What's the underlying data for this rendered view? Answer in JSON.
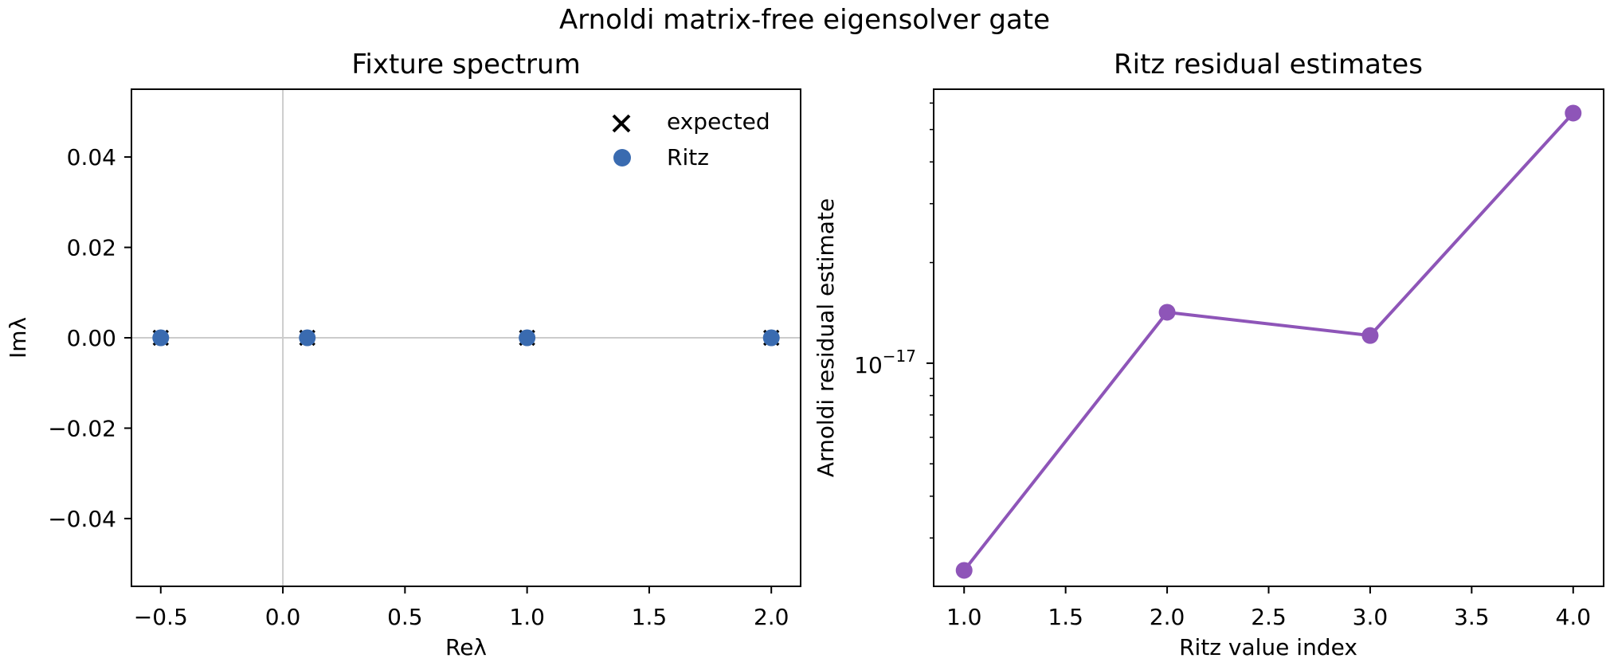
{
  "figure": {
    "title": "Arnoldi matrix-free eigensolver gate"
  },
  "chart_data": [
    {
      "type": "scatter",
      "title": "Fixture spectrum",
      "xlabel": "Reλ",
      "ylabel": "Imλ",
      "xlim": [
        -0.62,
        2.12
      ],
      "ylim": [
        -0.055,
        0.055
      ],
      "xticks": [
        -0.5,
        0.0,
        0.5,
        1.0,
        1.5,
        2.0
      ],
      "xtick_labels": [
        "−0.5",
        "0.0",
        "0.5",
        "1.0",
        "1.5",
        "2.0"
      ],
      "yticks": [
        0.04,
        0.02,
        0.0,
        -0.02,
        -0.04
      ],
      "ytick_labels": [
        "0.04",
        "0.02",
        "0.00",
        "−0.02",
        "−0.04"
      ],
      "grid": false,
      "reference_lines": {
        "x": 0,
        "y": 0,
        "color": "#cccccc"
      },
      "legend": {
        "placement": "top-right"
      },
      "series": [
        {
          "name": "expected",
          "marker": "x",
          "color": "#000000",
          "points": [
            [
              -0.5,
              0.0
            ],
            [
              0.1,
              0.0
            ],
            [
              1.0,
              0.0
            ],
            [
              2.0,
              0.0
            ]
          ]
        },
        {
          "name": "Ritz",
          "marker": "o",
          "color": "#3a6bb0",
          "points": [
            [
              -0.5,
              0.0
            ],
            [
              0.1,
              0.0
            ],
            [
              1.0,
              0.0
            ],
            [
              2.0,
              0.0
            ]
          ]
        }
      ]
    },
    {
      "type": "line",
      "title": "Ritz residual estimates",
      "xlabel": "Ritz value index",
      "ylabel": "Arnoldi residual estimate",
      "xlim": [
        0.85,
        4.15
      ],
      "yscale": "log",
      "ylim": [
        2.15e-18,
        6.6e-17
      ],
      "xticks": [
        1.0,
        1.5,
        2.0,
        2.5,
        3.0,
        3.5,
        4.0
      ],
      "xtick_labels": [
        "1.0",
        "1.5",
        "2.0",
        "2.5",
        "3.0",
        "3.5",
        "4.0"
      ],
      "ytick_major": {
        "value": 1e-17,
        "base": "10",
        "exponent": "−17"
      },
      "yminor_ticks": [
        3e-18,
        4e-18,
        5e-18,
        6e-18,
        7e-18,
        8e-18,
        9e-18,
        2e-17,
        3e-17,
        4e-17,
        5e-17,
        6e-17
      ],
      "grid": false,
      "series": [
        {
          "color": "#8e55b8",
          "marker": "o",
          "x": [
            1,
            2,
            3,
            4
          ],
          "y": [
            2.4e-18,
            1.42e-17,
            1.21e-17,
            5.6e-17
          ]
        }
      ]
    }
  ]
}
